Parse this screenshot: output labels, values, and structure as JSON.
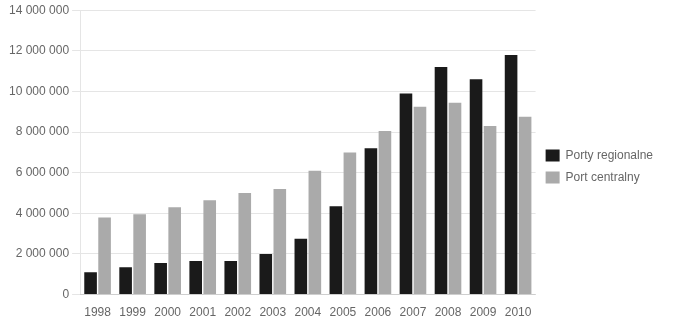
{
  "chart_data": {
    "type": "bar",
    "categories": [
      "1998",
      "1999",
      "2000",
      "2001",
      "2002",
      "2003",
      "2004",
      "2005",
      "2006",
      "2007",
      "2008",
      "2009",
      "2010"
    ],
    "series": [
      {
        "name": "Porty regionalne",
        "color": "#1a1a1a",
        "values": [
          1100000,
          1350000,
          1550000,
          1650000,
          1650000,
          2000000,
          2750000,
          4350000,
          7200000,
          9900000,
          11200000,
          10600000,
          11800000
        ]
      },
      {
        "name": "Port centralny",
        "color": "#aaaaaa",
        "values": [
          3800000,
          3950000,
          4300000,
          4650000,
          5000000,
          5200000,
          6100000,
          7000000,
          8050000,
          9250000,
          9450000,
          8300000,
          8750000
        ]
      }
    ],
    "ylim": [
      0,
      14000000
    ],
    "yticks": [
      0,
      {
        "value": 2000000,
        "label": "2 000 000"
      },
      {
        "value": 4000000,
        "label": "4 000 000"
      },
      {
        "value": 6000000,
        "label": "6 000 000"
      },
      {
        "value": 8000000,
        "label": "8 000 000"
      },
      {
        "value": 10000000,
        "label": "10 000 000"
      },
      {
        "value": 12000000,
        "label": "12 000 000"
      },
      {
        "value": 14000000,
        "label": "14 000 000"
      }
    ],
    "grid": true,
    "legend": "right"
  }
}
